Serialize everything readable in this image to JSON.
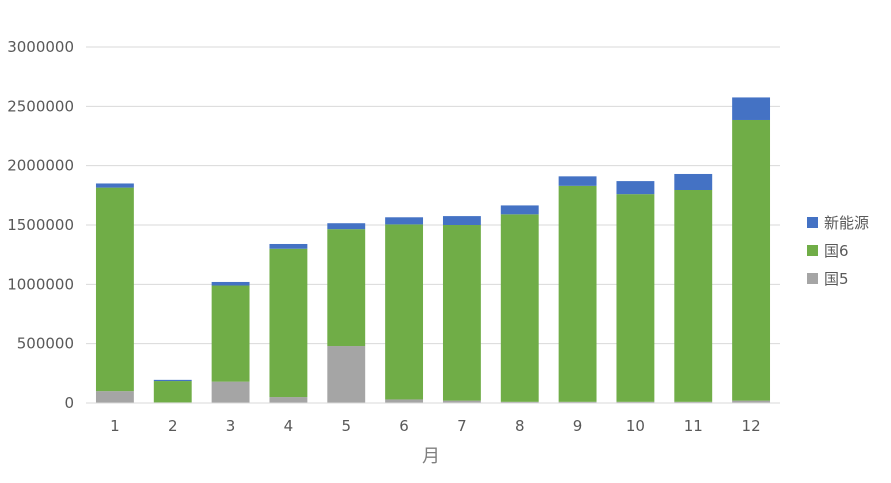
{
  "chart_data": {
    "type": "bar",
    "stacked": true,
    "title": "",
    "xlabel": "月",
    "ylabel": "",
    "categories": [
      "1",
      "2",
      "3",
      "4",
      "5",
      "6",
      "7",
      "8",
      "9",
      "10",
      "11",
      "12"
    ],
    "ylim": [
      0,
      3000000
    ],
    "yticks": [
      0,
      500000,
      1000000,
      1500000,
      2000000,
      2500000,
      3000000
    ],
    "ytick_labels": [
      "0",
      "500000",
      "1000000",
      "1500000",
      "2000000",
      "2500000",
      "3000000"
    ],
    "grid": true,
    "legend_position": "right",
    "series": [
      {
        "name": "国5",
        "color": "#a5a5a5",
        "values": [
          100000,
          5000,
          180000,
          50000,
          480000,
          30000,
          20000,
          10000,
          10000,
          10000,
          10000,
          20000
        ]
      },
      {
        "name": "国6",
        "color": "#70ad47",
        "values": [
          1715000,
          180000,
          810000,
          1250000,
          985000,
          1475000,
          1480000,
          1580000,
          1820000,
          1750000,
          1785000,
          2365000
        ]
      },
      {
        "name": "新能源",
        "color": "#4472c4",
        "values": [
          35000,
          10000,
          30000,
          40000,
          50000,
          60000,
          75000,
          75000,
          80000,
          110000,
          135000,
          190000
        ]
      }
    ],
    "legend_order": [
      "新能源",
      "国6",
      "国5"
    ]
  }
}
